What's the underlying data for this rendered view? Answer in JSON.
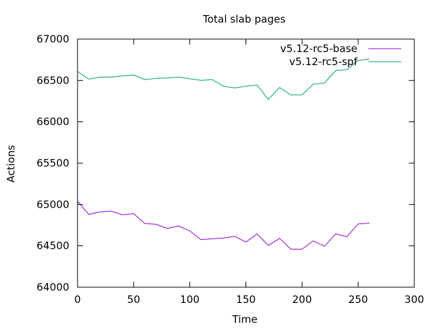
{
  "chart_data": {
    "type": "line",
    "title": "Total slab pages",
    "xlabel": "Time",
    "ylabel": "Actions",
    "xlim": [
      0,
      300
    ],
    "ylim": [
      64000,
      67000
    ],
    "x_ticks": [
      0,
      50,
      100,
      150,
      200,
      250,
      300
    ],
    "y_ticks": [
      64000,
      64500,
      65000,
      65500,
      66000,
      66500,
      67000
    ],
    "grid": false,
    "legend_position": "top-right",
    "series": [
      {
        "name": "v5.12-rc5-base",
        "color": "#9400d3",
        "x": [
          0,
          10,
          20,
          30,
          40,
          50,
          60,
          70,
          80,
          90,
          100,
          110,
          120,
          130,
          140,
          150,
          160,
          170,
          180,
          190,
          200,
          210,
          220,
          230,
          240,
          250,
          260
        ],
        "y": [
          65040,
          64880,
          64910,
          64920,
          64875,
          64890,
          64770,
          64760,
          64710,
          64740,
          64680,
          64575,
          64585,
          64595,
          64615,
          64545,
          64645,
          64505,
          64590,
          64460,
          64460,
          64560,
          64495,
          64645,
          64610,
          64765,
          64775
        ]
      },
      {
        "name": "v5.12-rc5-spf",
        "color": "#009e73",
        "x": [
          0,
          10,
          20,
          30,
          40,
          50,
          60,
          70,
          80,
          90,
          100,
          110,
          120,
          130,
          140,
          150,
          160,
          170,
          180,
          190,
          200,
          210,
          220,
          230,
          240,
          250,
          260
        ],
        "y": [
          66610,
          66515,
          66540,
          66540,
          66555,
          66565,
          66510,
          66525,
          66530,
          66540,
          66520,
          66500,
          66510,
          66430,
          66410,
          66430,
          66445,
          66270,
          66415,
          66325,
          66325,
          66455,
          66470,
          66620,
          66630,
          66740,
          66760
        ]
      }
    ]
  }
}
